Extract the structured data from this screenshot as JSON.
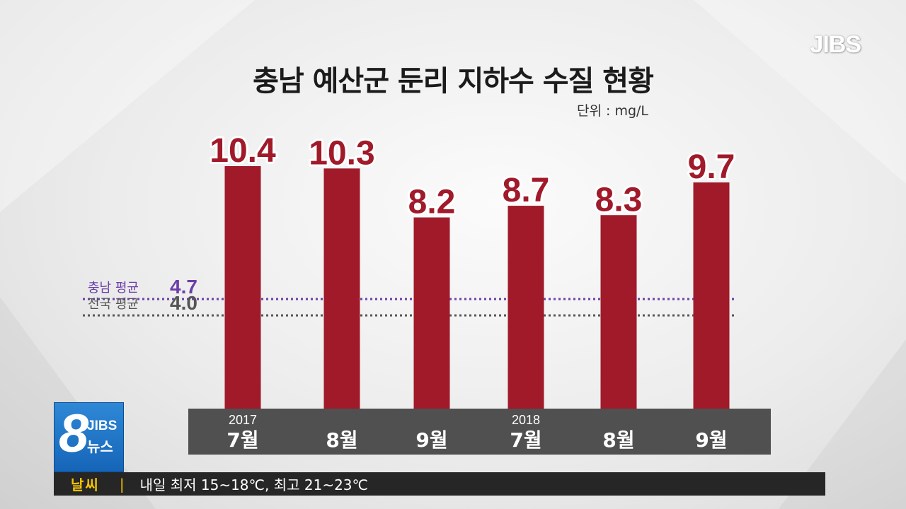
{
  "logo": "JIBS",
  "chart_data": {
    "type": "bar",
    "title": "충남 예산군 둔리 지하수 수질 현황",
    "unit_label": "단위 : mg/L",
    "ylim": [
      0,
      10.4
    ],
    "categories": [
      {
        "year": "2017",
        "month": "7월"
      },
      {
        "year": "",
        "month": "8월"
      },
      {
        "year": "",
        "month": "9월"
      },
      {
        "year": "2018",
        "month": "7월"
      },
      {
        "year": "",
        "month": "8월"
      },
      {
        "year": "",
        "month": "9월"
      }
    ],
    "values": [
      10.4,
      10.3,
      8.2,
      8.7,
      8.3,
      9.7
    ],
    "value_labels": [
      "10.4",
      "10.3",
      "8.2",
      "8.7",
      "8.3",
      "9.7"
    ],
    "bar_color": "#a01a2a",
    "reference_lines": [
      {
        "label": "충남 평균",
        "value": 4.7,
        "value_label": "4.7",
        "color": "#6b3fa8"
      },
      {
        "label": "전국 평균",
        "value": 4.0,
        "value_label": "4.0",
        "color": "#555555"
      }
    ]
  },
  "news_badge": {
    "number": "8",
    "brand": "JIBS",
    "label": "뉴스"
  },
  "ticker": {
    "category": "날씨",
    "separator": "|",
    "text": "내일 최저 15~18℃, 최고 21~23℃"
  }
}
